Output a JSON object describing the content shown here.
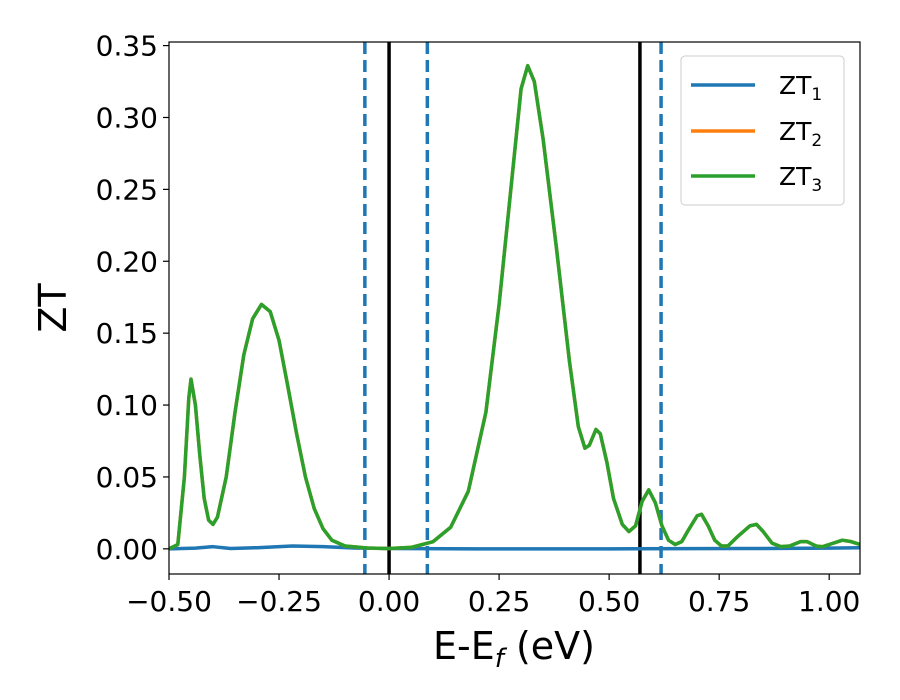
{
  "chart_data": {
    "type": "line",
    "xlabel_main": "E-E",
    "xlabel_sub": "f",
    "xlabel_unit": " (eV)",
    "ylabel": "ZT",
    "xlim": [
      -0.5,
      1.07
    ],
    "ylim": [
      -0.0175,
      0.3525
    ],
    "x_ticks": [
      -0.5,
      -0.25,
      0.0,
      0.25,
      0.5,
      0.75,
      1.0
    ],
    "x_tick_labels": [
      "−0.50",
      "−0.25",
      "0.00",
      "0.25",
      "0.50",
      "0.75",
      "1.00"
    ],
    "y_ticks": [
      0.0,
      0.05,
      0.1,
      0.15,
      0.2,
      0.25,
      0.3,
      0.35
    ],
    "y_tick_labels": [
      "0.00",
      "0.05",
      "0.10",
      "0.15",
      "0.20",
      "0.25",
      "0.30",
      "0.35"
    ],
    "grid": false,
    "legend_position": "top-right",
    "vlines": [
      {
        "x": -0.055,
        "style": "dashed",
        "color": "#1f77b4"
      },
      {
        "x": 0.0,
        "style": "solid",
        "color": "#000000"
      },
      {
        "x": 0.087,
        "style": "dashed",
        "color": "#1f77b4"
      },
      {
        "x": 0.57,
        "style": "solid",
        "color": "#000000"
      },
      {
        "x": 0.618,
        "style": "dashed",
        "color": "#1f77b4"
      }
    ],
    "series": [
      {
        "name": "ZT",
        "sub": "1",
        "color": "#1f77b4",
        "points": [
          [
            -0.5,
            0.0
          ],
          [
            -0.44,
            0.0005
          ],
          [
            -0.4,
            0.0015
          ],
          [
            -0.36,
            0.0002
          ],
          [
            -0.3,
            0.0008
          ],
          [
            -0.22,
            0.002
          ],
          [
            -0.15,
            0.0015
          ],
          [
            -0.08,
            0.0006
          ],
          [
            0.0,
            0.0002
          ],
          [
            0.2,
            0.0
          ],
          [
            0.5,
            0.0
          ],
          [
            0.8,
            0.0002
          ],
          [
            1.0,
            0.0005
          ],
          [
            1.07,
            0.0008
          ]
        ]
      },
      {
        "name": "ZT",
        "sub": "2",
        "color": "#ff7f0e",
        "points": [
          [
            -0.5,
            0.0
          ],
          [
            -0.48,
            0.003
          ],
          [
            -0.465,
            0.05
          ],
          [
            -0.455,
            0.105
          ],
          [
            -0.45,
            0.118
          ],
          [
            -0.44,
            0.1
          ],
          [
            -0.43,
            0.065
          ],
          [
            -0.42,
            0.035
          ],
          [
            -0.41,
            0.02
          ],
          [
            -0.4,
            0.017
          ],
          [
            -0.39,
            0.022
          ],
          [
            -0.37,
            0.05
          ],
          [
            -0.35,
            0.095
          ],
          [
            -0.33,
            0.135
          ],
          [
            -0.31,
            0.16
          ],
          [
            -0.29,
            0.17
          ],
          [
            -0.27,
            0.165
          ],
          [
            -0.25,
            0.145
          ],
          [
            -0.23,
            0.113
          ],
          [
            -0.21,
            0.08
          ],
          [
            -0.19,
            0.05
          ],
          [
            -0.17,
            0.028
          ],
          [
            -0.15,
            0.014
          ],
          [
            -0.13,
            0.006
          ],
          [
            -0.1,
            0.002
          ],
          [
            -0.05,
            0.0006
          ],
          [
            0.0,
            0.0002
          ],
          [
            0.05,
            0.001
          ],
          [
            0.1,
            0.005
          ],
          [
            0.14,
            0.015
          ],
          [
            0.18,
            0.04
          ],
          [
            0.22,
            0.095
          ],
          [
            0.25,
            0.17
          ],
          [
            0.28,
            0.26
          ],
          [
            0.3,
            0.32
          ],
          [
            0.315,
            0.336
          ],
          [
            0.33,
            0.325
          ],
          [
            0.35,
            0.285
          ],
          [
            0.38,
            0.21
          ],
          [
            0.41,
            0.13
          ],
          [
            0.43,
            0.085
          ],
          [
            0.445,
            0.07
          ],
          [
            0.455,
            0.072
          ],
          [
            0.47,
            0.083
          ],
          [
            0.48,
            0.08
          ],
          [
            0.495,
            0.06
          ],
          [
            0.51,
            0.035
          ],
          [
            0.53,
            0.017
          ],
          [
            0.545,
            0.012
          ],
          [
            0.56,
            0.016
          ],
          [
            0.575,
            0.033
          ],
          [
            0.59,
            0.041
          ],
          [
            0.605,
            0.032
          ],
          [
            0.62,
            0.016
          ],
          [
            0.635,
            0.006
          ],
          [
            0.65,
            0.003
          ],
          [
            0.665,
            0.005
          ],
          [
            0.68,
            0.013
          ],
          [
            0.7,
            0.023
          ],
          [
            0.71,
            0.024
          ],
          [
            0.725,
            0.016
          ],
          [
            0.74,
            0.006
          ],
          [
            0.755,
            0.002
          ],
          [
            0.77,
            0.002
          ],
          [
            0.79,
            0.008
          ],
          [
            0.82,
            0.016
          ],
          [
            0.835,
            0.017
          ],
          [
            0.85,
            0.012
          ],
          [
            0.87,
            0.004
          ],
          [
            0.89,
            0.0015
          ],
          [
            0.91,
            0.002
          ],
          [
            0.935,
            0.005
          ],
          [
            0.95,
            0.005
          ],
          [
            0.97,
            0.002
          ],
          [
            0.985,
            0.0015
          ],
          [
            1.0,
            0.003
          ],
          [
            1.03,
            0.006
          ],
          [
            1.05,
            0.005
          ],
          [
            1.07,
            0.003
          ]
        ]
      },
      {
        "name": "ZT",
        "sub": "3",
        "color": "#2ca02c",
        "points": [
          [
            -0.5,
            0.0
          ],
          [
            -0.48,
            0.003
          ],
          [
            -0.465,
            0.05
          ],
          [
            -0.455,
            0.105
          ],
          [
            -0.45,
            0.118
          ],
          [
            -0.44,
            0.1
          ],
          [
            -0.43,
            0.065
          ],
          [
            -0.42,
            0.035
          ],
          [
            -0.41,
            0.02
          ],
          [
            -0.4,
            0.017
          ],
          [
            -0.39,
            0.022
          ],
          [
            -0.37,
            0.05
          ],
          [
            -0.35,
            0.095
          ],
          [
            -0.33,
            0.135
          ],
          [
            -0.31,
            0.16
          ],
          [
            -0.29,
            0.17
          ],
          [
            -0.27,
            0.165
          ],
          [
            -0.25,
            0.145
          ],
          [
            -0.23,
            0.113
          ],
          [
            -0.21,
            0.08
          ],
          [
            -0.19,
            0.05
          ],
          [
            -0.17,
            0.028
          ],
          [
            -0.15,
            0.014
          ],
          [
            -0.13,
            0.006
          ],
          [
            -0.1,
            0.002
          ],
          [
            -0.05,
            0.0006
          ],
          [
            0.0,
            0.0002
          ],
          [
            0.05,
            0.001
          ],
          [
            0.1,
            0.005
          ],
          [
            0.14,
            0.015
          ],
          [
            0.18,
            0.04
          ],
          [
            0.22,
            0.095
          ],
          [
            0.25,
            0.17
          ],
          [
            0.28,
            0.26
          ],
          [
            0.3,
            0.32
          ],
          [
            0.315,
            0.336
          ],
          [
            0.33,
            0.325
          ],
          [
            0.35,
            0.285
          ],
          [
            0.38,
            0.21
          ],
          [
            0.41,
            0.13
          ],
          [
            0.43,
            0.085
          ],
          [
            0.445,
            0.07
          ],
          [
            0.455,
            0.072
          ],
          [
            0.47,
            0.083
          ],
          [
            0.48,
            0.08
          ],
          [
            0.495,
            0.06
          ],
          [
            0.51,
            0.035
          ],
          [
            0.53,
            0.017
          ],
          [
            0.545,
            0.012
          ],
          [
            0.56,
            0.016
          ],
          [
            0.575,
            0.033
          ],
          [
            0.59,
            0.041
          ],
          [
            0.605,
            0.032
          ],
          [
            0.62,
            0.016
          ],
          [
            0.635,
            0.006
          ],
          [
            0.65,
            0.003
          ],
          [
            0.665,
            0.005
          ],
          [
            0.68,
            0.013
          ],
          [
            0.7,
            0.023
          ],
          [
            0.71,
            0.024
          ],
          [
            0.725,
            0.016
          ],
          [
            0.74,
            0.006
          ],
          [
            0.755,
            0.002
          ],
          [
            0.77,
            0.002
          ],
          [
            0.79,
            0.008
          ],
          [
            0.82,
            0.016
          ],
          [
            0.835,
            0.017
          ],
          [
            0.85,
            0.012
          ],
          [
            0.87,
            0.004
          ],
          [
            0.89,
            0.0015
          ],
          [
            0.91,
            0.002
          ],
          [
            0.935,
            0.005
          ],
          [
            0.95,
            0.005
          ],
          [
            0.97,
            0.002
          ],
          [
            0.985,
            0.0015
          ],
          [
            1.0,
            0.003
          ],
          [
            1.03,
            0.006
          ],
          [
            1.05,
            0.005
          ],
          [
            1.07,
            0.003
          ]
        ]
      }
    ]
  }
}
